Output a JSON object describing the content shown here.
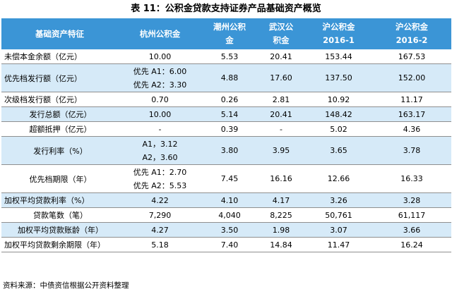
{
  "title": "表 11：公积金贷款支持证券产品基础资产概览",
  "header": {
    "col0": "基础资产特征",
    "col1": "杭州公积金",
    "col2": [
      "潮州公积",
      "金"
    ],
    "col3": [
      "武汉公",
      "积金"
    ],
    "col4": [
      "沪公积金",
      "2016-1"
    ],
    "col5": [
      "沪公积金",
      "2016-2"
    ]
  },
  "rows": [
    {
      "label": "未偿本金余额（亿元）",
      "hz": "10.00",
      "cz": "5.53",
      "wh": "20.41",
      "h1": "153.44",
      "h2": "167.53"
    },
    {
      "label": "优先档发行额（亿元）",
      "hz": [
        "优先 A1：6.00",
        "优先 A2：3.30"
      ],
      "cz": "4.88",
      "wh": "17.60",
      "h1": "137.50",
      "h2": "152.00"
    },
    {
      "label": "次级档发行额（亿元）",
      "hz": "0.70",
      "cz": "0.26",
      "wh": "2.81",
      "h1": "10.92",
      "h2": "11.17"
    },
    {
      "label": "发行总额（亿元）",
      "hz": "10.00",
      "cz": "5.14",
      "wh": "20.41",
      "h1": "148.42",
      "h2": "163.17"
    },
    {
      "label": "超额抵押（亿元）",
      "hz": "-",
      "cz": "0.39",
      "wh": "-",
      "h1": "5.02",
      "h2": "4.36"
    },
    {
      "label": "发行利率（%）",
      "hz": [
        "A1，3.12",
        "A2，3.60"
      ],
      "cz": "3.80",
      "wh": "3.95",
      "h1": "3.65",
      "h2": "3.78"
    },
    {
      "label": "优先档期限（年）",
      "hz": [
        "优先 A1：2.70",
        "优先 A2：5.53"
      ],
      "cz": "7.45",
      "wh": "16.16",
      "h1": "12.66",
      "h2": "16.33"
    },
    {
      "label": "加权平均贷款利率（%）",
      "hz": "4.22",
      "cz": "4.10",
      "wh": "4.17",
      "h1": "3.26",
      "h2": "3.28"
    },
    {
      "label": "贷款笔数（笔）",
      "hz": "7,290",
      "cz": "4,040",
      "wh": "8,225",
      "h1": "50,761",
      "h2": "61,117"
    },
    {
      "label": "加权平均贷款账龄（年）",
      "hz": "4.27",
      "cz": "3.50",
      "wh": "1.98",
      "h1": "3.07",
      "h2": "3.66"
    },
    {
      "label": "加权平均贷款剩余期限（年）",
      "hz": "5.18",
      "cz": "7.40",
      "wh": "14.84",
      "h1": "11.47",
      "h2": "16.24"
    }
  ],
  "source": "资料来源：中债资信根据公开资料整理",
  "colors": {
    "header_bg": "#3b95d6",
    "stripe_bg": "#d6eaf8",
    "header_text": "#ffffff"
  }
}
